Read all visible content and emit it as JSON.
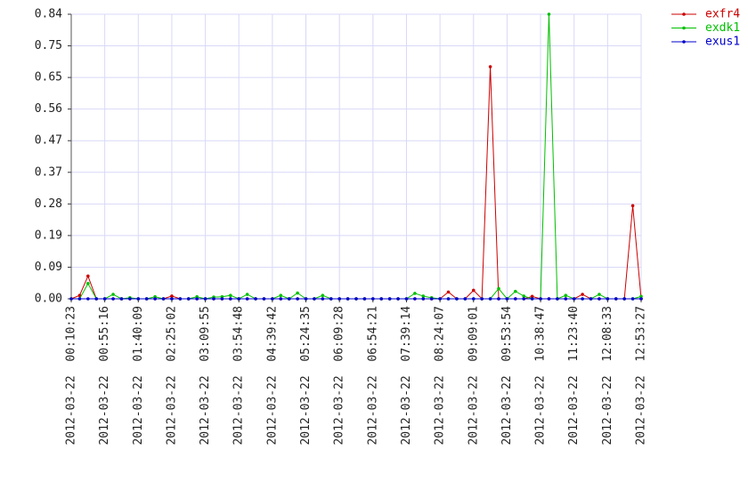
{
  "chart_data": {
    "type": "line",
    "categories": [
      "2012-03-22  00:10:23",
      null,
      null,
      null,
      "2012-03-22  00:55:16",
      null,
      null,
      null,
      "2012-03-22  01:40:09",
      null,
      null,
      null,
      "2012-03-22  02:25:02",
      null,
      null,
      null,
      "2012-03-22  03:09:55",
      null,
      null,
      null,
      "2012-03-22  03:54:48",
      null,
      null,
      null,
      "2012-03-22  04:39:42",
      null,
      null,
      null,
      "2012-03-22  05:24:35",
      null,
      null,
      null,
      "2012-03-22  06:09:28",
      null,
      null,
      null,
      "2012-03-22  06:54:21",
      null,
      null,
      null,
      "2012-03-22  07:39:14",
      null,
      null,
      null,
      "2012-03-22  08:24:07",
      null,
      null,
      null,
      "2012-03-22  09:09:01",
      null,
      null,
      null,
      "2012-03-22  09:53:54",
      null,
      null,
      null,
      "2012-03-22  10:38:47",
      null,
      null,
      null,
      "2012-03-22  11:23:40",
      null,
      null,
      null,
      "2012-03-22  12:08:33",
      null,
      null,
      null,
      "2012-03-22  12:53:27"
    ],
    "series": [
      {
        "name": "exfr4",
        "color": "#cc0000",
        "values": [
          0,
          0.01,
          0.067,
          0,
          0,
          0,
          0,
          0,
          0,
          0,
          0,
          0,
          0.008,
          0,
          0,
          0,
          0,
          0,
          0,
          0,
          0,
          0,
          0,
          0,
          0,
          0,
          0,
          0,
          0,
          0,
          0,
          0,
          0,
          0,
          0,
          0,
          0,
          0,
          0,
          0,
          0,
          0,
          0,
          0,
          0,
          0.02,
          0,
          0,
          0.025,
          0,
          0.685,
          0,
          0,
          0,
          0,
          0.007,
          0,
          0,
          0,
          0,
          0,
          0.013,
          0,
          0,
          0,
          0,
          0,
          0.275,
          0
        ]
      },
      {
        "name": "exdk1",
        "color": "#00c000",
        "values": [
          0,
          0,
          0.045,
          0,
          0,
          0.013,
          0,
          0.003,
          0,
          0,
          0.006,
          0,
          0,
          0,
          0,
          0.006,
          0,
          0.005,
          0.006,
          0.01,
          0,
          0.013,
          0,
          0,
          0,
          0.01,
          0,
          0.017,
          0,
          0,
          0.01,
          0,
          0,
          0,
          0,
          0,
          0,
          0,
          0,
          0,
          0,
          0.016,
          0.008,
          0.003,
          0,
          0,
          0,
          0,
          0,
          0,
          0,
          0.03,
          0,
          0.022,
          0.008,
          0,
          0,
          0.84,
          0,
          0.01,
          0,
          0,
          0,
          0.013,
          0,
          0,
          0,
          0,
          0.007
        ]
      },
      {
        "name": "exus1",
        "color": "#0000cc",
        "values": [
          0,
          0,
          0,
          0,
          0,
          0,
          0,
          0,
          0,
          0,
          0,
          0,
          0,
          0,
          0,
          0,
          0,
          0,
          0,
          0,
          0,
          0,
          0,
          0,
          0,
          0,
          0,
          0,
          0,
          0,
          0,
          0,
          0,
          0,
          0,
          0,
          0,
          0,
          0,
          0,
          0,
          0,
          0,
          0,
          0,
          0,
          0,
          0,
          0,
          0,
          0,
          0,
          0,
          0,
          0,
          0,
          0,
          0,
          0,
          0,
          0,
          0,
          0,
          0,
          0,
          0,
          0,
          0,
          0
        ]
      }
    ],
    "ylim": [
      0,
      0.84
    ],
    "yticks": [
      {
        "value": 0,
        "label": "0.00"
      },
      {
        "value": 0.0933,
        "label": "0.09"
      },
      {
        "value": 0.1867,
        "label": "0.19"
      },
      {
        "value": 0.28,
        "label": "0.28"
      },
      {
        "value": 0.3733,
        "label": "0.37"
      },
      {
        "value": 0.4667,
        "label": "0.47"
      },
      {
        "value": 0.56,
        "label": "0.56"
      },
      {
        "value": 0.6533,
        "label": "0.65"
      },
      {
        "value": 0.7467,
        "label": "0.75"
      },
      {
        "value": 0.84,
        "label": "0.84"
      }
    ],
    "grid": true,
    "legend": "right"
  }
}
